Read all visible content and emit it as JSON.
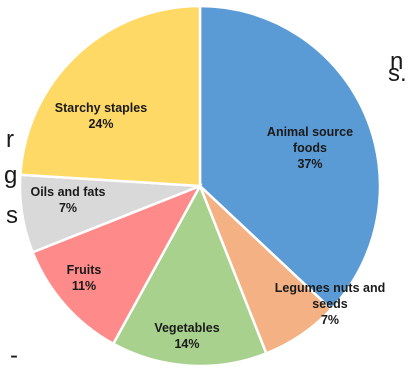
{
  "background_text_fragments": [
    "n",
    "s.",
    "r",
    "g",
    "s",
    "-"
  ],
  "chart_data": {
    "type": "pie",
    "start_angle_deg": 0,
    "direction": "clockwise",
    "slices": [
      {
        "label_lines": [
          "Animal source",
          "foods"
        ],
        "percent_label": "37%",
        "value": 37,
        "color": "#5b9bd5"
      },
      {
        "label_lines": [
          "Legumes nuts and",
          "seeds"
        ],
        "percent_label": "7%",
        "value": 7,
        "color": "#f4b183"
      },
      {
        "label_lines": [
          "Vegetables"
        ],
        "percent_label": "14%",
        "value": 14,
        "color": "#a9d18e"
      },
      {
        "label_lines": [
          "Fruits"
        ],
        "percent_label": "11%",
        "value": 11,
        "color": "#ff8a8a"
      },
      {
        "label_lines": [
          "Oils and fats"
        ],
        "percent_label": "7%",
        "value": 7,
        "color": "#d9d9d9"
      },
      {
        "label_lines": [
          "Starchy staples"
        ],
        "percent_label": "24%",
        "value": 24,
        "color": "#ffd966"
      }
    ],
    "slice_border_color": "#ffffff"
  }
}
